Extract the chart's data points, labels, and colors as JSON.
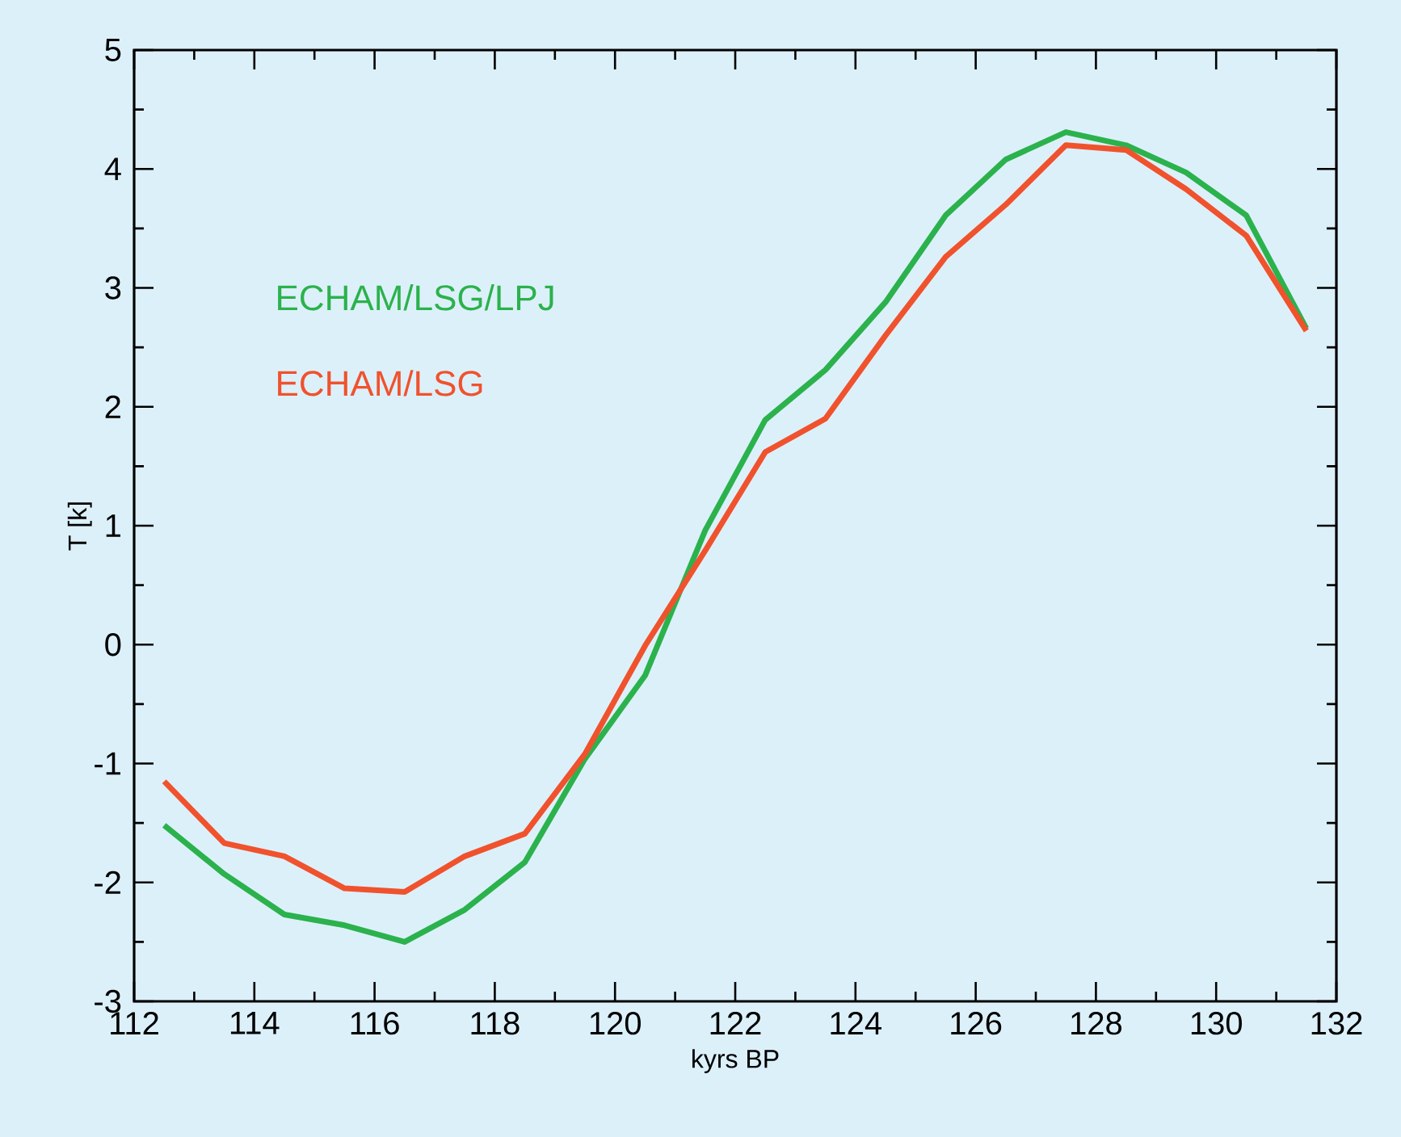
{
  "chart_data": {
    "type": "line",
    "xlabel": "kyrs BP",
    "ylabel": "T [k]",
    "x": [
      112.5,
      113.5,
      114.5,
      115.5,
      116.5,
      117.5,
      118.5,
      119.5,
      120.5,
      121.5,
      122.5,
      123.5,
      124.5,
      125.5,
      126.5,
      127.5,
      128.5,
      129.5,
      130.5,
      131.5
    ],
    "series": [
      {
        "name": "ECHAM/LSG/LPJ",
        "color": "#2bb24c",
        "values": [
          -1.52,
          -1.93,
          -2.27,
          -2.36,
          -2.5,
          -2.23,
          -1.83,
          -0.96,
          -0.26,
          0.96,
          1.89,
          2.31,
          2.88,
          3.61,
          4.08,
          4.31,
          4.2,
          3.97,
          3.61,
          2.66
        ]
      },
      {
        "name": "ECHAM/LSG",
        "color": "#f0522d",
        "values": [
          -1.15,
          -1.67,
          -1.78,
          -2.05,
          -2.08,
          -1.78,
          -1.59,
          -0.92,
          -0.01,
          0.79,
          1.62,
          1.9,
          2.6,
          3.26,
          3.7,
          4.2,
          4.16,
          3.83,
          3.44,
          2.64
        ]
      }
    ],
    "xlim": [
      112,
      132
    ],
    "xticks": [
      112,
      114,
      116,
      118,
      120,
      122,
      124,
      126,
      128,
      130,
      132
    ],
    "ylim": [
      -3,
      5
    ],
    "yticks": [
      -3,
      -2,
      -1,
      0,
      1,
      2,
      3,
      4,
      5
    ],
    "grid": false,
    "legend": "top left",
    "marker": "none",
    "line_style": "solid"
  }
}
